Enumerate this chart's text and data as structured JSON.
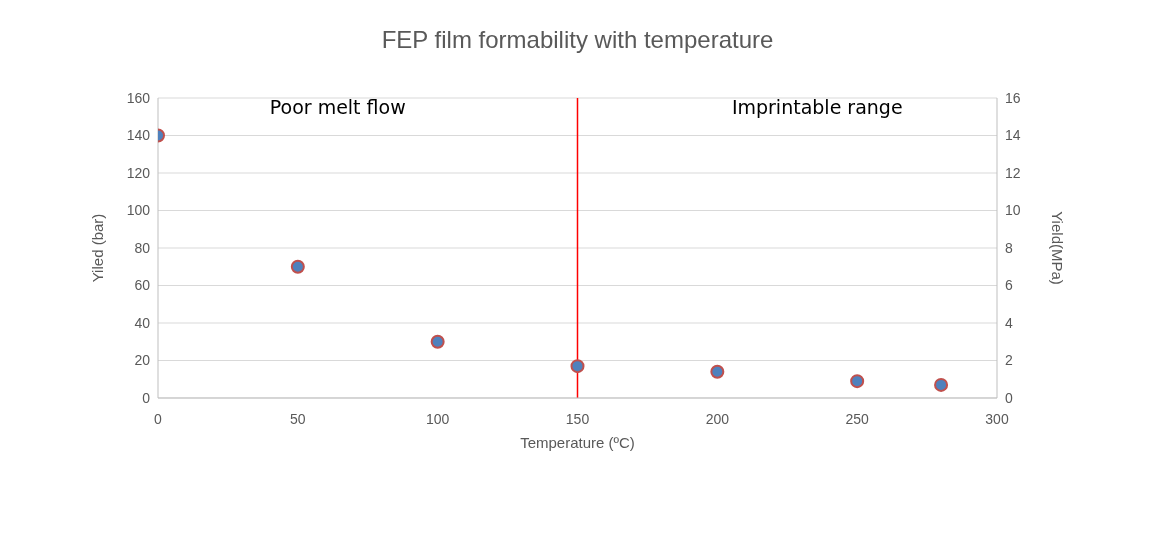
{
  "chart_data": {
    "type": "scatter",
    "title": "FEP film formability with temperature",
    "xlabel": "Temperature (ºC)",
    "ylabel": "Yiled (bar)",
    "y2label": "Yield(MPa)",
    "x": [
      0,
      50,
      100,
      150,
      200,
      250,
      280
    ],
    "series": [
      {
        "color": "#4f81bd",
        "values": [
          140,
          70,
          30,
          17,
          14,
          9,
          7
        ]
      }
    ],
    "xlim": [
      0,
      300
    ],
    "xticks": [
      0,
      50,
      100,
      150,
      200,
      250,
      300
    ],
    "ylim": [
      0,
      160
    ],
    "yticks": [
      0,
      20,
      40,
      60,
      80,
      100,
      120,
      140,
      160
    ],
    "y2lim": [
      0,
      16
    ],
    "y2ticks": [
      0,
      2,
      4,
      6,
      8,
      10,
      12,
      14,
      16
    ],
    "ref_lines": [
      {
        "axis": "x",
        "value": 150,
        "color": "#ff0000"
      }
    ],
    "annotations": [
      "Poor melt flow",
      "Imprintable range"
    ],
    "grid": "y",
    "marker": "circle",
    "legend": false
  }
}
